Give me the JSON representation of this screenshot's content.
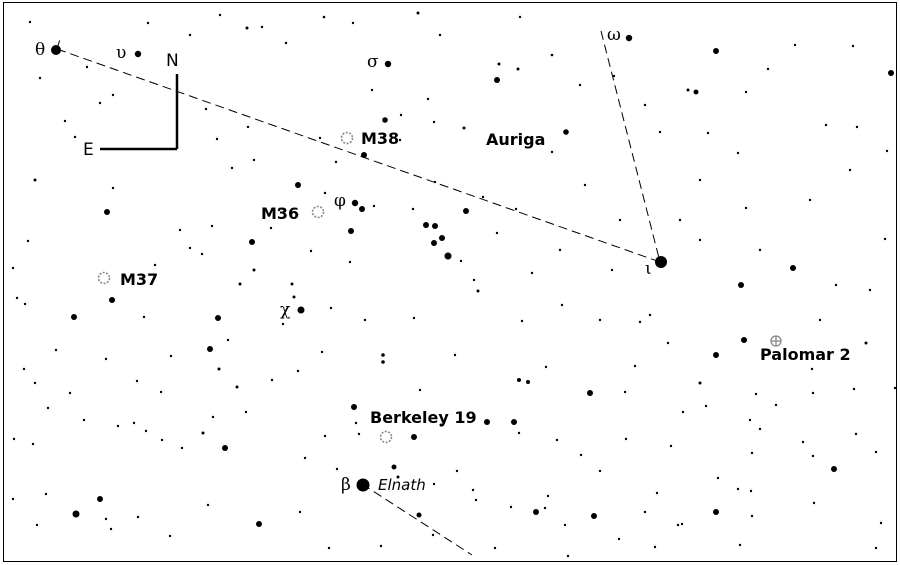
{
  "map": {
    "constellation": "Auriga",
    "compass": {
      "north": "N",
      "east": "E"
    },
    "stars": [
      {
        "id": "theta",
        "greek": "θ"
      },
      {
        "id": "upsilon",
        "greek": "υ"
      },
      {
        "id": "sigma",
        "greek": "σ"
      },
      {
        "id": "omega",
        "greek": "ω"
      },
      {
        "id": "phi",
        "greek": "φ"
      },
      {
        "id": "iota",
        "greek": "ι"
      },
      {
        "id": "chi",
        "greek": "χ"
      },
      {
        "id": "beta",
        "greek": "β",
        "name": "Elnath"
      }
    ],
    "objects": [
      {
        "id": "m38",
        "label": "M38",
        "kind": "open-cluster"
      },
      {
        "id": "m36",
        "label": "M36",
        "kind": "open-cluster"
      },
      {
        "id": "m37",
        "label": "M37",
        "kind": "open-cluster"
      },
      {
        "id": "berkeley19",
        "label": "Berkeley 19",
        "kind": "open-cluster"
      },
      {
        "id": "palomar2",
        "label": "Palomar 2",
        "kind": "globular-cluster"
      }
    ],
    "colors": {
      "ink": "#000000",
      "cluster_symbol": "#888888"
    }
  }
}
